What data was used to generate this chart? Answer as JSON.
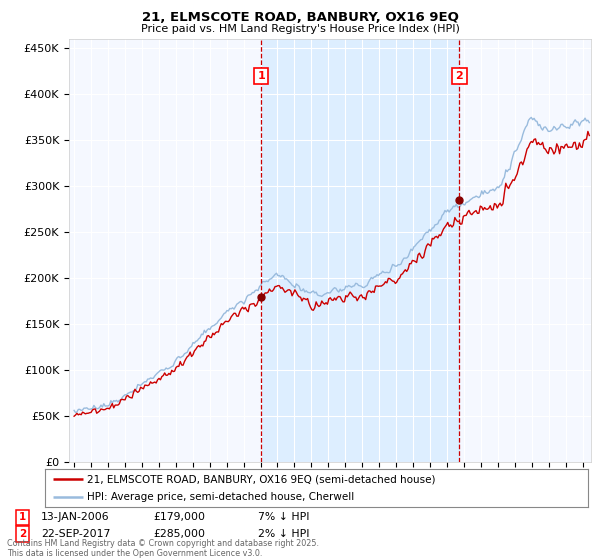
{
  "title1": "21, ELMSCOTE ROAD, BANBURY, OX16 9EQ",
  "title2": "Price paid vs. HM Land Registry's House Price Index (HPI)",
  "ylabel_ticks": [
    "£0",
    "£50K",
    "£100K",
    "£150K",
    "£200K",
    "£250K",
    "£300K",
    "£350K",
    "£400K",
    "£450K"
  ],
  "ytick_values": [
    0,
    50000,
    100000,
    150000,
    200000,
    250000,
    300000,
    350000,
    400000,
    450000
  ],
  "ylim": [
    0,
    460000
  ],
  "xlim_start": 1994.7,
  "xlim_end": 2025.5,
  "xticks": [
    1995,
    1996,
    1997,
    1998,
    1999,
    2000,
    2001,
    2002,
    2003,
    2004,
    2005,
    2006,
    2007,
    2008,
    2009,
    2010,
    2011,
    2012,
    2013,
    2014,
    2015,
    2016,
    2017,
    2018,
    2019,
    2020,
    2021,
    2022,
    2023,
    2024,
    2025
  ],
  "line1_color": "#cc0000",
  "line2_color": "#99bbdd",
  "vline_color": "#cc0000",
  "shade_color": "#ddeeff",
  "sale1_x": 2006.04,
  "sale1_y": 179000,
  "sale1_label": "1",
  "sale2_x": 2017.73,
  "sale2_y": 285000,
  "sale2_label": "2",
  "legend_line1": "21, ELMSCOTE ROAD, BANBURY, OX16 9EQ (semi-detached house)",
  "legend_line2": "HPI: Average price, semi-detached house, Cherwell",
  "annotation1_date": "13-JAN-2006",
  "annotation1_price": "£179,000",
  "annotation1_hpi": "7% ↓ HPI",
  "annotation2_date": "22-SEP-2017",
  "annotation2_price": "£285,000",
  "annotation2_hpi": "2% ↓ HPI",
  "footer": "Contains HM Land Registry data © Crown copyright and database right 2025.\nThis data is licensed under the Open Government Licence v3.0.",
  "background_color": "#ffffff",
  "plot_bg_color": "#f5f8ff"
}
